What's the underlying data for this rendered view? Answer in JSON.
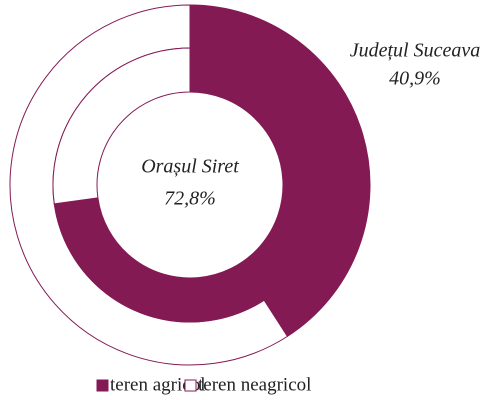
{
  "chart_data": {
    "type": "donut",
    "categories": [
      "teren agricol",
      "teren neagricol"
    ],
    "colors": [
      "#841a54",
      "#ffffff"
    ],
    "series": [
      {
        "name": "Județul Suceava",
        "values": [
          40.9,
          59.1
        ],
        "value_labels": [
          "40,9%",
          null
        ]
      },
      {
        "name": "Orașul Siret",
        "values": [
          72.8,
          27.2
        ],
        "value_labels": [
          "72,8%",
          null
        ]
      }
    ]
  }
}
